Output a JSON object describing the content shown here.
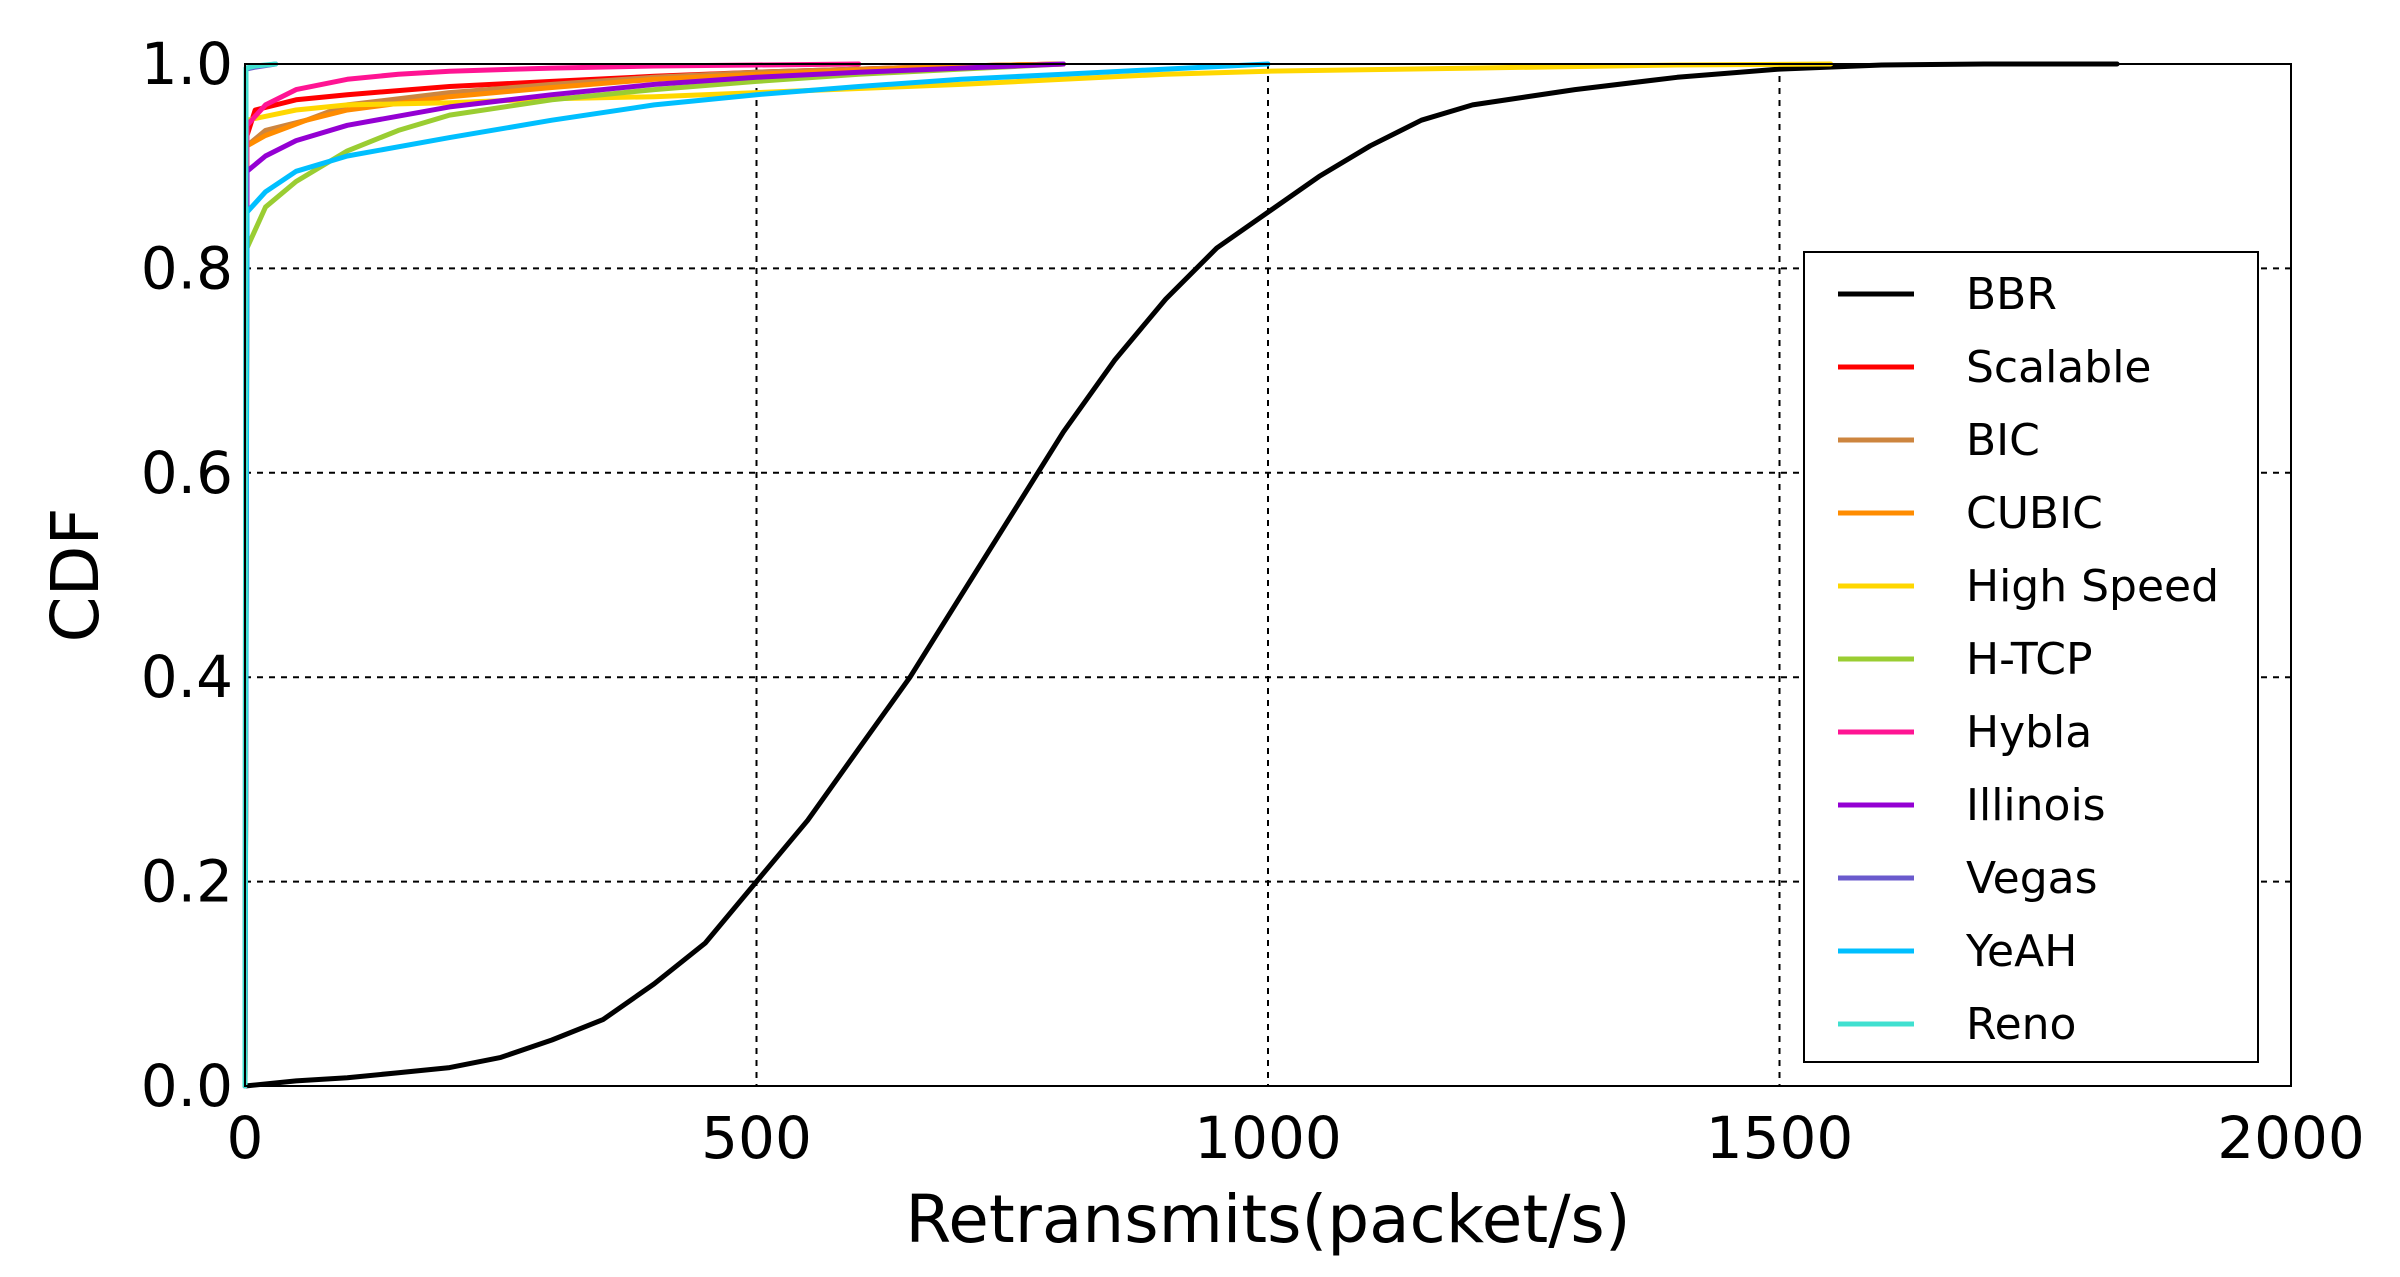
{
  "chart_data": {
    "type": "line",
    "title": "",
    "xlabel": "Retransmits(packet/s)",
    "ylabel": "CDF",
    "xlim": [
      0,
      2000
    ],
    "ylim": [
      0,
      1.0
    ],
    "x_ticks": [
      "0",
      "500",
      "1000",
      "1500",
      "2000"
    ],
    "y_ticks": [
      "0.0",
      "0.2",
      "0.4",
      "0.6",
      "0.8",
      "1.0"
    ],
    "grid": true,
    "legend_position": "lower-right",
    "series": [
      {
        "name": "BBR",
        "color": "#000000",
        "points": [
          [
            0,
            0
          ],
          [
            50,
            0.005
          ],
          [
            100,
            0.008
          ],
          [
            150,
            0.013
          ],
          [
            200,
            0.018
          ],
          [
            250,
            0.028
          ],
          [
            300,
            0.045
          ],
          [
            350,
            0.065
          ],
          [
            400,
            0.1
          ],
          [
            450,
            0.14
          ],
          [
            500,
            0.2
          ],
          [
            550,
            0.26
          ],
          [
            600,
            0.33
          ],
          [
            650,
            0.4
          ],
          [
            700,
            0.48
          ],
          [
            750,
            0.56
          ],
          [
            800,
            0.64
          ],
          [
            850,
            0.71
          ],
          [
            900,
            0.77
          ],
          [
            950,
            0.82
          ],
          [
            1000,
            0.855
          ],
          [
            1050,
            0.89
          ],
          [
            1100,
            0.92
          ],
          [
            1150,
            0.945
          ],
          [
            1200,
            0.96
          ],
          [
            1300,
            0.975
          ],
          [
            1400,
            0.987
          ],
          [
            1500,
            0.995
          ],
          [
            1600,
            0.999
          ],
          [
            1700,
            1.0
          ],
          [
            1830,
            1.0
          ]
        ]
      },
      {
        "name": "Scalable",
        "color": "#ff0000",
        "points": [
          [
            0,
            0
          ],
          [
            2,
            0.93
          ],
          [
            10,
            0.955
          ],
          [
            50,
            0.965
          ],
          [
            100,
            0.97
          ],
          [
            200,
            0.978
          ],
          [
            300,
            0.983
          ],
          [
            400,
            0.988
          ],
          [
            500,
            0.992
          ],
          [
            600,
            0.995
          ],
          [
            700,
            0.998
          ],
          [
            800,
            1.0
          ]
        ]
      },
      {
        "name": "BIC",
        "color": "#cd853f",
        "points": [
          [
            0,
            0
          ],
          [
            2,
            0.92
          ],
          [
            20,
            0.935
          ],
          [
            60,
            0.945
          ],
          [
            100,
            0.96
          ],
          [
            200,
            0.972
          ],
          [
            300,
            0.98
          ],
          [
            400,
            0.987
          ],
          [
            500,
            0.992
          ],
          [
            600,
            0.995
          ],
          [
            700,
            0.998
          ],
          [
            800,
            1.0
          ]
        ]
      },
      {
        "name": "CUBIC",
        "color": "#ff8c00",
        "points": [
          [
            0,
            0
          ],
          [
            2,
            0.92
          ],
          [
            20,
            0.93
          ],
          [
            60,
            0.945
          ],
          [
            100,
            0.955
          ],
          [
            200,
            0.968
          ],
          [
            300,
            0.977
          ],
          [
            400,
            0.985
          ],
          [
            500,
            0.99
          ],
          [
            600,
            0.994
          ],
          [
            700,
            0.998
          ],
          [
            800,
            1.0
          ]
        ]
      },
      {
        "name": "High Speed",
        "color": "#ffd700",
        "points": [
          [
            0,
            0
          ],
          [
            2,
            0.945
          ],
          [
            50,
            0.955
          ],
          [
            100,
            0.96
          ],
          [
            200,
            0.962
          ],
          [
            300,
            0.966
          ],
          [
            400,
            0.968
          ],
          [
            500,
            0.972
          ],
          [
            600,
            0.976
          ],
          [
            700,
            0.98
          ],
          [
            800,
            0.985
          ],
          [
            900,
            0.99
          ],
          [
            1000,
            0.993
          ],
          [
            1200,
            0.996
          ],
          [
            1400,
            0.999
          ],
          [
            1550,
            1.0
          ]
        ]
      },
      {
        "name": "H-TCP",
        "color": "#9acd32",
        "points": [
          [
            0,
            0
          ],
          [
            2,
            0.82
          ],
          [
            20,
            0.86
          ],
          [
            50,
            0.885
          ],
          [
            100,
            0.915
          ],
          [
            150,
            0.935
          ],
          [
            200,
            0.95
          ],
          [
            300,
            0.965
          ],
          [
            400,
            0.975
          ],
          [
            500,
            0.983
          ],
          [
            600,
            0.99
          ],
          [
            700,
            0.995
          ],
          [
            800,
            1.0
          ]
        ]
      },
      {
        "name": "Hybla",
        "color": "#ff1493",
        "points": [
          [
            0,
            0
          ],
          [
            2,
            0.94
          ],
          [
            20,
            0.96
          ],
          [
            50,
            0.975
          ],
          [
            100,
            0.985
          ],
          [
            150,
            0.99
          ],
          [
            200,
            0.993
          ],
          [
            300,
            0.996
          ],
          [
            400,
            0.998
          ],
          [
            500,
            0.999
          ],
          [
            600,
            1.0
          ]
        ]
      },
      {
        "name": "Illinois",
        "color": "#9400d3",
        "points": [
          [
            0,
            0
          ],
          [
            2,
            0.895
          ],
          [
            20,
            0.91
          ],
          [
            50,
            0.925
          ],
          [
            100,
            0.94
          ],
          [
            200,
            0.958
          ],
          [
            300,
            0.97
          ],
          [
            400,
            0.98
          ],
          [
            500,
            0.987
          ],
          [
            600,
            0.992
          ],
          [
            700,
            0.996
          ],
          [
            800,
            1.0
          ]
        ]
      },
      {
        "name": "Vegas",
        "color": "#6a5acd",
        "points": [
          [
            0,
            0
          ],
          [
            1,
            0.995
          ],
          [
            10,
            0.997
          ],
          [
            30,
            1.0
          ]
        ]
      },
      {
        "name": "YeAH",
        "color": "#00bfff",
        "points": [
          [
            0,
            0
          ],
          [
            2,
            0.855
          ],
          [
            20,
            0.875
          ],
          [
            50,
            0.895
          ],
          [
            100,
            0.91
          ],
          [
            200,
            0.928
          ],
          [
            300,
            0.945
          ],
          [
            400,
            0.96
          ],
          [
            500,
            0.97
          ],
          [
            600,
            0.978
          ],
          [
            700,
            0.985
          ],
          [
            800,
            0.99
          ],
          [
            900,
            0.995
          ],
          [
            1000,
            1.0
          ]
        ]
      },
      {
        "name": "Reno",
        "color": "#40e0d0",
        "points": [
          [
            0,
            0
          ],
          [
            1,
            0.996
          ],
          [
            10,
            0.998
          ],
          [
            30,
            1.0
          ]
        ]
      }
    ]
  }
}
